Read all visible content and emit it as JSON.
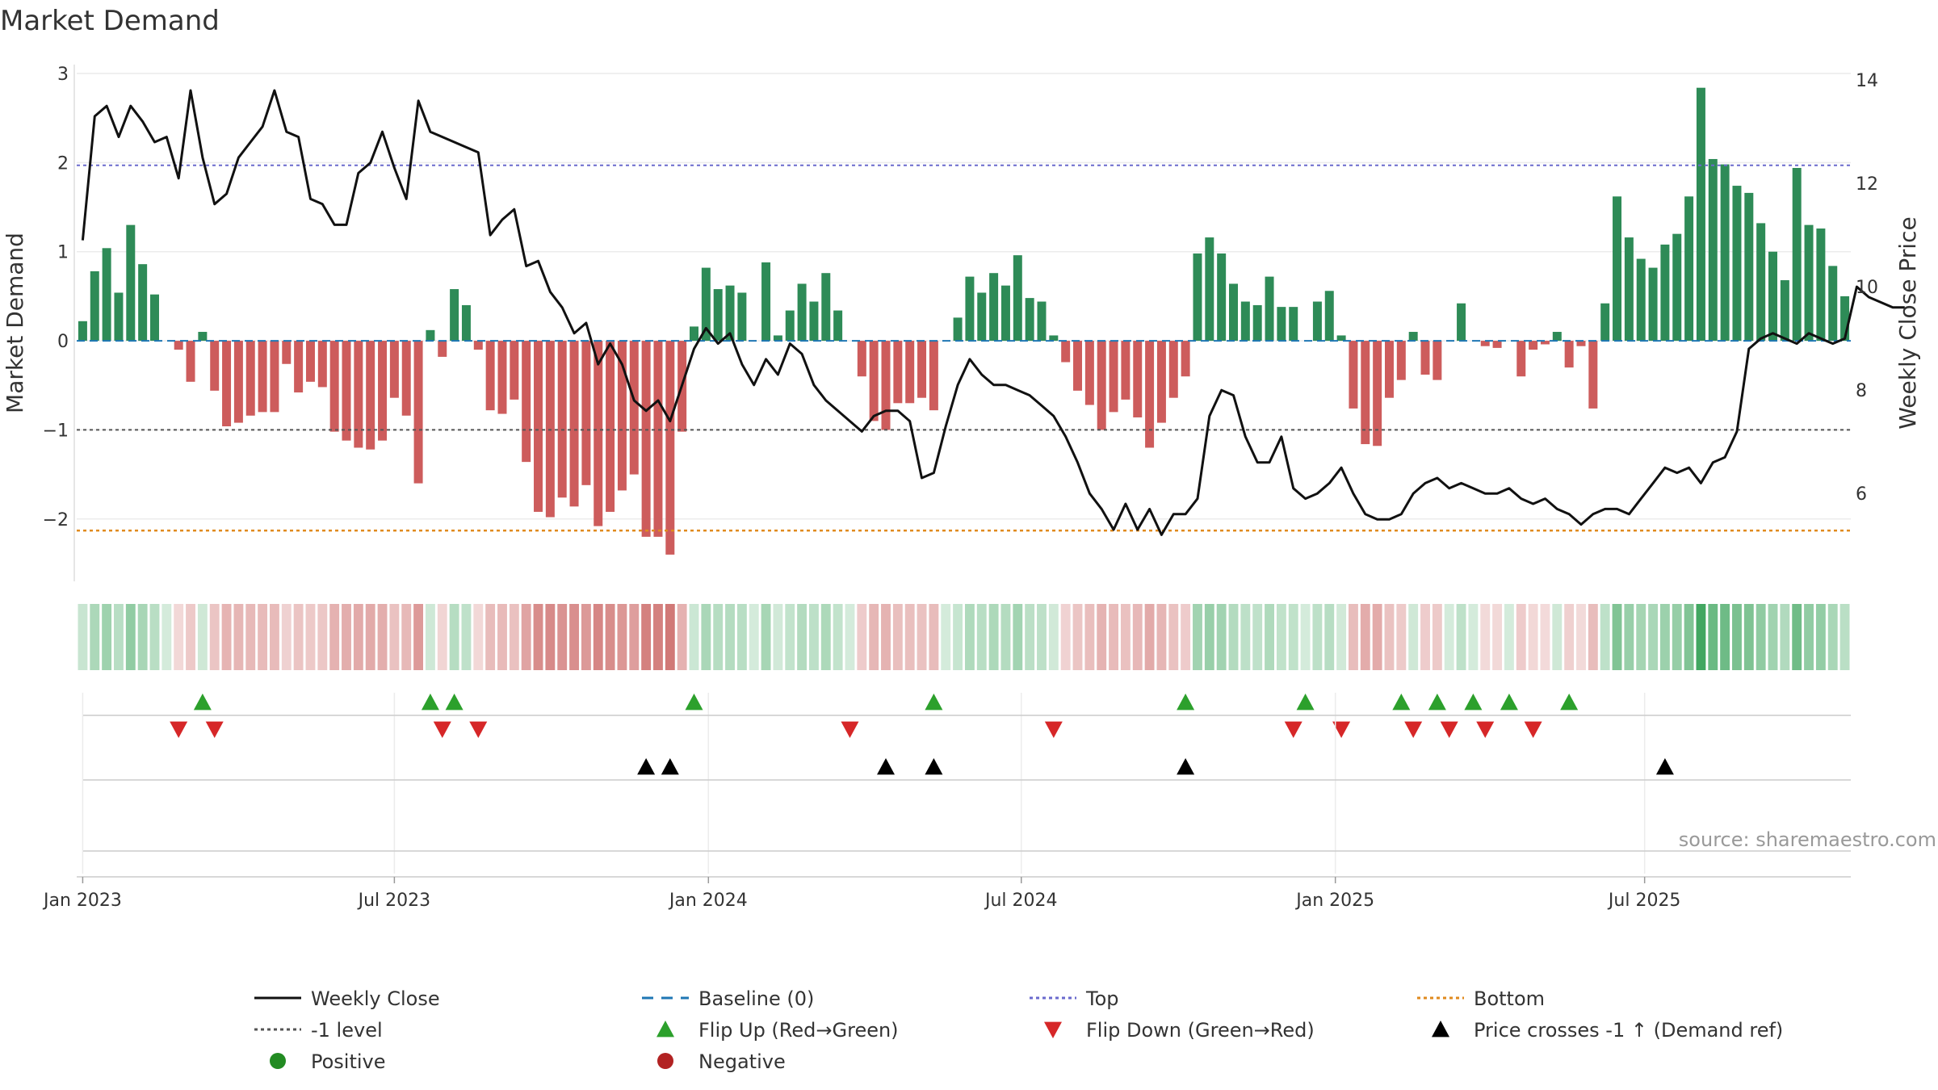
{
  "chart_data": {
    "type": "bar",
    "title": "Market Demand",
    "ylabel": "Market Demand",
    "y2label": "Weekly Close Price",
    "ylim": [
      -2.7,
      3.1
    ],
    "y2lim": [
      4.3,
      14.3
    ],
    "yticks": [
      3,
      2,
      1,
      0,
      -1,
      -2
    ],
    "ytick_labels": [
      "3",
      "2",
      "1",
      "0",
      "−1",
      "−2"
    ],
    "y2ticks": [
      14,
      12,
      10,
      8,
      6
    ],
    "y2tick_labels": [
      "14",
      "12",
      "10",
      "8",
      "6"
    ],
    "date_ticks": [
      "Jan 2023",
      "Jul 2023",
      "Jan 2024",
      "Jul 2024",
      "Jan 2025",
      "Jul 2025"
    ],
    "date_tick_weeks": [
      0.5,
      26.5,
      52.7,
      78.8,
      105.0,
      130.8
    ],
    "levels": {
      "top": 1.97,
      "bottom": -2.13,
      "minus_one": -1.0,
      "baseline": 0
    },
    "colors": {
      "positive": "#2e8b57",
      "negative": "#cd5c5c",
      "price": "#111111",
      "top": "#6a6acd",
      "bottom": "#e08a1e",
      "minus_one": "#555555",
      "baseline": "#1f77b4",
      "flip_up": "#2ca02c",
      "flip_down": "#d62728",
      "cross": "#000000",
      "pos_dot": "#228b22",
      "neg_dot": "#b22222"
    },
    "series": [
      {
        "name": "Market Demand",
        "values": [
          0.22,
          0.78,
          1.04,
          0.54,
          1.3,
          0.86,
          0.52,
          0.0,
          -0.1,
          -0.46,
          0.1,
          -0.56,
          -0.96,
          -0.92,
          -0.84,
          -0.8,
          -0.8,
          -0.26,
          -0.58,
          -0.46,
          -0.52,
          -1.02,
          -1.12,
          -1.2,
          -1.22,
          -1.12,
          -0.64,
          -0.84,
          -1.6,
          0.12,
          -0.18,
          0.58,
          0.4,
          -0.1,
          -0.78,
          -0.82,
          -0.66,
          -1.36,
          -1.92,
          -1.98,
          -1.76,
          -1.86,
          -1.62,
          -2.08,
          -1.92,
          -1.68,
          -1.5,
          -2.2,
          -2.2,
          -2.4,
          -1.02,
          0.16,
          0.82,
          0.58,
          0.62,
          0.54,
          0.0,
          0.88,
          0.06,
          0.34,
          0.64,
          0.44,
          0.76,
          0.34,
          0.0,
          -0.4,
          -0.9,
          -1.0,
          -0.7,
          -0.7,
          -0.64,
          -0.78,
          0.0,
          0.26,
          0.72,
          0.54,
          0.76,
          0.62,
          0.96,
          0.48,
          0.44,
          0.06,
          -0.24,
          -0.56,
          -0.72,
          -1.0,
          -0.8,
          -0.66,
          -0.86,
          -1.2,
          -0.92,
          -0.64,
          -0.4,
          0.98,
          1.16,
          0.98,
          0.64,
          0.44,
          0.4,
          0.72,
          0.38,
          0.38,
          0.0,
          0.44,
          0.56,
          0.06,
          -0.76,
          -1.16,
          -1.18,
          -0.64,
          -0.44,
          0.1,
          -0.38,
          -0.44,
          0.0,
          0.42,
          0.0,
          -0.06,
          -0.08,
          0.0,
          -0.4,
          -0.1,
          -0.04,
          0.1,
          -0.3,
          -0.06,
          -0.76,
          0.42,
          1.62,
          1.16,
          0.92,
          0.82,
          1.08,
          1.2,
          1.62,
          2.84,
          2.04,
          1.98,
          1.74,
          1.66,
          1.32,
          1.0,
          0.68,
          1.94,
          1.3,
          1.26,
          0.84,
          0.5
        ]
      },
      {
        "name": "Weekly Close",
        "values": [
          10.9,
          13.3,
          13.5,
          12.9,
          13.5,
          13.2,
          12.8,
          12.9,
          12.1,
          13.8,
          12.5,
          11.6,
          11.8,
          12.5,
          12.8,
          13.1,
          13.8,
          13.0,
          12.9,
          11.7,
          11.6,
          11.2,
          11.2,
          12.2,
          12.4,
          13.0,
          12.3,
          11.7,
          13.6,
          13.0,
          12.9,
          12.8,
          12.7,
          12.6,
          11.0,
          11.3,
          11.5,
          10.4,
          10.5,
          9.9,
          9.6,
          9.1,
          9.3,
          8.5,
          8.9,
          8.5,
          7.8,
          7.6,
          7.8,
          7.4,
          8.1,
          8.8,
          9.2,
          8.9,
          9.1,
          8.5,
          8.1,
          8.6,
          8.3,
          8.9,
          8.7,
          8.1,
          7.8,
          7.6,
          7.4,
          7.2,
          7.5,
          7.6,
          7.6,
          7.4,
          6.3,
          6.4,
          7.3,
          8.1,
          8.6,
          8.3,
          8.1,
          8.1,
          8.0,
          7.9,
          7.7,
          7.5,
          7.1,
          6.6,
          6.0,
          5.7,
          5.3,
          5.8,
          5.3,
          5.7,
          5.2,
          5.6,
          5.6,
          5.9,
          7.5,
          8.0,
          7.9,
          7.1,
          6.6,
          6.6,
          7.1,
          6.1,
          5.9,
          6.0,
          6.2,
          6.5,
          6.0,
          5.6,
          5.5,
          5.5,
          5.6,
          6.0,
          6.2,
          6.3,
          6.1,
          6.2,
          6.1,
          6.0,
          6.0,
          6.1,
          5.9,
          5.8,
          5.9,
          5.7,
          5.6,
          5.4,
          5.6,
          5.7,
          5.7,
          5.6,
          5.9,
          6.2,
          6.5,
          6.4,
          6.5,
          6.2,
          6.6,
          6.7,
          7.2,
          8.8,
          9.0,
          9.1,
          9.0,
          8.9,
          9.1,
          9.0,
          8.9,
          9.0,
          10.0,
          9.8,
          9.7,
          9.6,
          9.6
        ]
      }
    ],
    "flip_up_weeks": [
      10,
      29,
      31,
      51,
      71,
      92,
      102,
      110,
      113,
      116,
      119,
      124
    ],
    "flip_down_weeks": [
      8,
      11,
      30,
      33,
      64,
      81,
      101,
      105,
      111,
      114,
      117,
      121
    ],
    "cross_weeks": [
      47,
      49,
      67,
      71,
      92,
      132
    ],
    "legend": [
      {
        "label": "Weekly Close",
        "kind": "line",
        "color": "#111111"
      },
      {
        "label": "Baseline (0)",
        "kind": "dash",
        "color": "#1f77b4"
      },
      {
        "label": "Top",
        "kind": "dot",
        "color": "#6a6acd"
      },
      {
        "label": "Bottom",
        "kind": "dot",
        "color": "#e08a1e"
      },
      {
        "label": "-1 level",
        "kind": "dot",
        "color": "#555555"
      },
      {
        "label": "Flip Up (Red→Green)",
        "kind": "tri-up",
        "color": "#2ca02c"
      },
      {
        "label": "Flip Down (Green→Red)",
        "kind": "tri-down",
        "color": "#d62728"
      },
      {
        "label": "Price crosses -1 ↑ (Demand ref)",
        "kind": "tri-up",
        "color": "#000000"
      },
      {
        "label": "Positive",
        "kind": "circle",
        "color": "#228b22"
      },
      {
        "label": "Negative",
        "kind": "circle",
        "color": "#b22222"
      }
    ],
    "source": "source: sharemaestro.com"
  }
}
